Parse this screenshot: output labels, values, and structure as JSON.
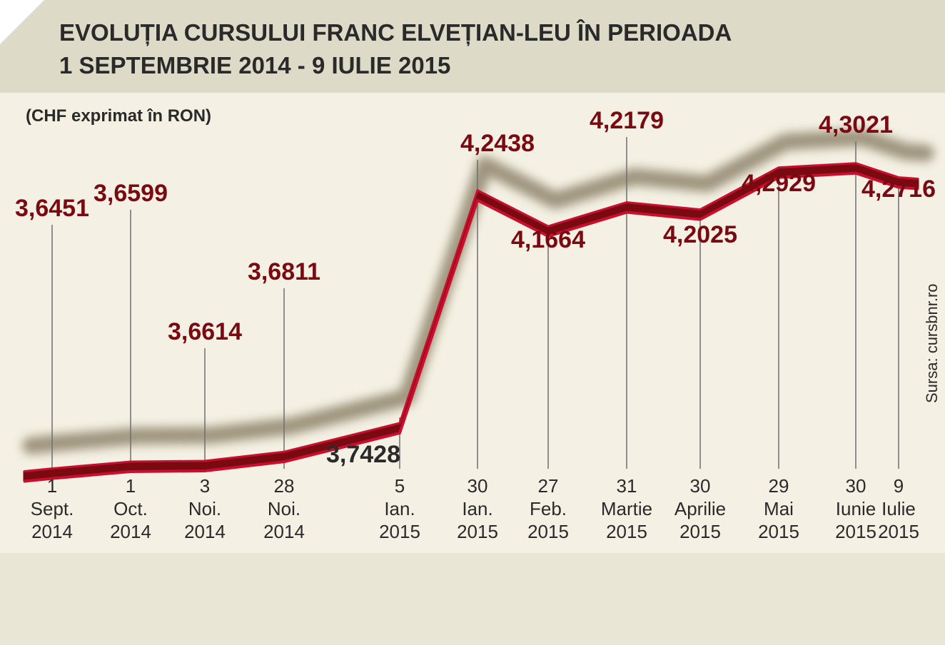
{
  "title": {
    "line1": "EVOLUȚIA CURSULUI FRANC ELVEȚIAN-LEU ÎN PERIOADA",
    "line2": "1 SEPTEMBRIE 2014 - 9 IULIE 2015"
  },
  "subtitle": "(CHF exprimat în RON)",
  "source": "Sursa: cursbnr.ro",
  "colors": {
    "header_bg": "#dddac7",
    "chart_bg": "#f4f1e4",
    "bottom_bg": "#e9e6d6",
    "title_text": "#2a2a2a",
    "ribbon_fill": "#7a0a12",
    "ribbon_edge": "#c8102e",
    "label_text": "#7a0a12",
    "shadow": "#5a4a2a"
  },
  "chart_data": {
    "type": "line",
    "ylabel": "(CHF exprimat în RON)",
    "ylim": [
      3.6,
      4.36
    ],
    "grid": false,
    "legend": "none",
    "points": [
      {
        "date": "2014-09-01",
        "value": 3.6451,
        "label": "3,6451",
        "tick": [
          "1",
          "Sept.",
          "2014"
        ]
      },
      {
        "date": "2014-10-01",
        "value": 3.6599,
        "label": "3,6599",
        "tick": [
          "1",
          "Oct.",
          "2014"
        ]
      },
      {
        "date": "2014-11-03",
        "value": 3.6614,
        "label": "3,6614",
        "tick": [
          "3",
          "Noi.",
          "2014"
        ]
      },
      {
        "date": "2014-11-28",
        "value": 3.6811,
        "label": "3,6811",
        "tick": [
          "28",
          "Noi.",
          "2014"
        ]
      },
      {
        "date": "2015-01-05",
        "value": 3.7428,
        "label": "3,7428",
        "tick": [
          "5",
          "Ian.",
          "2015"
        ]
      },
      {
        "date": "2015-01-30",
        "value": 4.2438,
        "label": "4,2438",
        "tick": [
          "30",
          "Ian.",
          "2015"
        ]
      },
      {
        "date": "2015-02-27",
        "value": 4.1664,
        "label": "4,1664",
        "tick": [
          "27",
          "Feb.",
          "2015"
        ]
      },
      {
        "date": "2015-03-31",
        "value": 4.2179,
        "label": "4,2179",
        "tick": [
          "31",
          "Martie",
          "2015"
        ]
      },
      {
        "date": "2015-04-30",
        "value": 4.2025,
        "label": "4,2025",
        "tick": [
          "30",
          "Aprilie",
          "2015"
        ]
      },
      {
        "date": "2015-05-29",
        "value": 4.2929,
        "label": "4,2929",
        "tick": [
          "29",
          "Mai",
          "2015"
        ]
      },
      {
        "date": "2015-06-30",
        "value": 4.3021,
        "label": "4,3021",
        "tick": [
          "30",
          "Iunie",
          "2015"
        ]
      },
      {
        "date": "2015-07-09",
        "value": 4.2716,
        "label": "4,2716",
        "tick": [
          "9",
          "Iulie",
          "2015"
        ]
      }
    ]
  }
}
